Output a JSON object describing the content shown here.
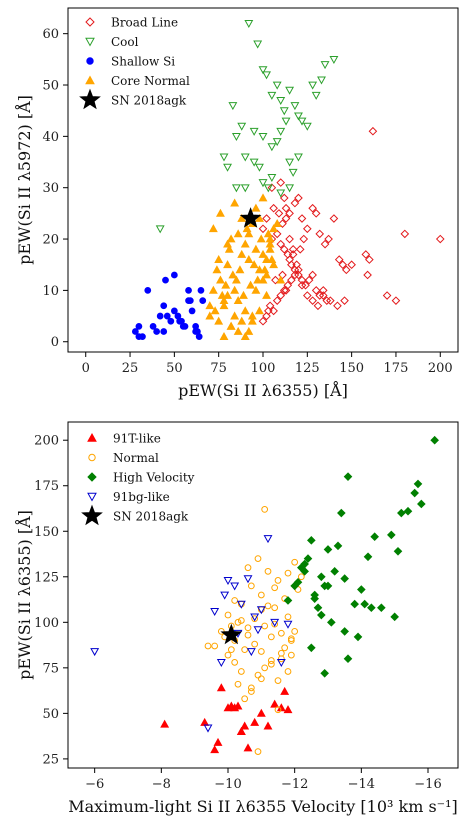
{
  "chart_data": [
    {
      "type": "scatter",
      "xlabel": "pEW(Si II λ6355) [Å]",
      "ylabel": "pEW(Si II λ5972) [Å]",
      "xlim": [
        -10,
        210
      ],
      "ylim": [
        -2,
        65
      ],
      "xticks": [
        "0",
        "25",
        "50",
        "75",
        "100",
        "125",
        "150",
        "175",
        "200"
      ],
      "yticks": [
        "0",
        "10",
        "20",
        "30",
        "40",
        "50",
        "60"
      ],
      "legend_position": "upper-left",
      "series": [
        {
          "name": "Broad Line",
          "marker": "diamond-open",
          "color": "#e31a1c",
          "x": [
            105,
            110,
            112,
            113,
            115,
            118,
            120,
            122,
            125,
            128,
            130,
            132,
            135,
            137,
            140,
            143,
            145,
            147,
            150,
            158,
            159,
            160,
            105,
            108,
            110,
            112,
            114,
            116,
            118,
            120,
            122,
            124,
            126,
            128,
            130,
            132,
            134,
            136,
            102,
            104,
            106,
            108,
            110,
            112,
            114,
            116,
            118,
            120,
            122,
            125,
            128,
            131,
            134,
            138,
            142,
            146,
            100,
            103,
            107,
            111,
            113,
            115,
            117,
            119,
            121,
            123,
            100,
            102,
            106,
            109,
            111,
            113,
            115,
            117,
            162,
            180,
            200,
            170,
            175
          ],
          "y": [
            30,
            31,
            28,
            26,
            25,
            27,
            28,
            24,
            22,
            26,
            25,
            21,
            19,
            20,
            24,
            16,
            15,
            14,
            15,
            17,
            13,
            16,
            20,
            21,
            19,
            18,
            17,
            15,
            14,
            13,
            12,
            11,
            12,
            13,
            10,
            9,
            9,
            8,
            5,
            7,
            6,
            8,
            9,
            10,
            11,
            12,
            13,
            14,
            11,
            9,
            8,
            7,
            10,
            8,
            7,
            8,
            4,
            6,
            12,
            13,
            10,
            16,
            17,
            15,
            18,
            20,
            22,
            24,
            26,
            25,
            23,
            24,
            20,
            18,
            41,
            21,
            20,
            9,
            8
          ]
        },
        {
          "name": "Cool",
          "marker": "triangle-down-open",
          "color": "#2ca02c",
          "x": [
            92,
            97,
            100,
            102,
            105,
            108,
            110,
            112,
            115,
            118,
            120,
            122,
            125,
            128,
            130,
            133,
            135,
            140,
            83,
            85,
            88,
            90,
            95,
            98,
            100,
            103,
            105,
            108,
            110,
            113,
            115,
            117,
            120,
            78,
            80,
            85,
            90,
            95,
            100,
            105,
            110,
            115,
            42
          ],
          "y": [
            62,
            58,
            53,
            52,
            48,
            50,
            47,
            45,
            49,
            46,
            44,
            43,
            42,
            50,
            48,
            51,
            54,
            55,
            46,
            40,
            42,
            30,
            35,
            34,
            31,
            30,
            38,
            39,
            41,
            43,
            35,
            33,
            36,
            36,
            34,
            30,
            36,
            41,
            40,
            32,
            29,
            30,
            22
          ]
        },
        {
          "name": "Shallow Si",
          "marker": "circle",
          "color": "#0000ff",
          "x": [
            28,
            30,
            32,
            35,
            38,
            40,
            42,
            44,
            45,
            46,
            48,
            50,
            52,
            53,
            54,
            55,
            56,
            58,
            59,
            60,
            62,
            63,
            64,
            65,
            66,
            30,
            44,
            50,
            58,
            62
          ],
          "y": [
            2,
            3,
            1,
            10,
            3,
            2,
            5,
            7,
            12,
            5,
            4,
            6,
            5,
            4,
            4,
            3,
            3,
            10,
            8,
            6,
            3,
            2,
            1,
            10,
            8,
            1,
            2,
            13,
            8,
            2
          ]
        },
        {
          "name": "Core Normal",
          "marker": "triangle-up",
          "color": "#ffa500",
          "x": [
            70,
            72,
            74,
            75,
            76,
            77,
            78,
            79,
            80,
            81,
            82,
            83,
            84,
            85,
            86,
            87,
            88,
            89,
            90,
            91,
            92,
            93,
            94,
            95,
            96,
            97,
            98,
            99,
            100,
            101,
            102,
            103,
            104,
            105,
            106,
            70,
            73,
            75,
            78,
            80,
            82,
            84,
            86,
            88,
            90,
            92,
            94,
            96,
            98,
            100,
            102,
            104,
            106,
            72,
            76,
            80,
            84,
            88,
            92,
            96,
            100,
            104,
            108,
            110,
            78,
            82,
            86,
            90,
            94,
            98,
            102
          ],
          "y": [
            7,
            10,
            14,
            16,
            12,
            9,
            8,
            11,
            15,
            18,
            20,
            13,
            10,
            12,
            21,
            14,
            17,
            9,
            19,
            22,
            16,
            11,
            23,
            15,
            18,
            12,
            24,
            20,
            17,
            14,
            13,
            21,
            19,
            16,
            22,
            5,
            6,
            4,
            7,
            9,
            3,
            5,
            8,
            4,
            6,
            2,
            5,
            10,
            14,
            12,
            16,
            18,
            15,
            22,
            25,
            19,
            27,
            24,
            21,
            26,
            28,
            20,
            23,
            12,
            1,
            3,
            2,
            1,
            4,
            6,
            9
          ]
        },
        {
          "name": "SN 2018agk",
          "marker": "star",
          "color": "#000000",
          "x": [
            93
          ],
          "y": [
            24
          ]
        }
      ]
    },
    {
      "type": "scatter",
      "xlabel": "Maximum-light Si II λ6355 Velocity  [10³ km s⁻¹]",
      "ylabel": "pEW(Si II λ6355) [Å]",
      "xlim": [
        -5.2,
        -16.9
      ],
      "ylim": [
        20,
        210
      ],
      "xticks": [
        "−6",
        "−8",
        "−10",
        "−12",
        "−14",
        "−16"
      ],
      "yticks": [
        "25",
        "50",
        "75",
        "100",
        "125",
        "150",
        "175",
        "200"
      ],
      "legend_position": "upper-left",
      "series": [
        {
          "name": "91T-like",
          "marker": "triangle-up",
          "color": "#ff0000",
          "x": [
            -8.1,
            -9.3,
            -9.6,
            -9.7,
            -9.8,
            -10.0,
            -10.2,
            -10.3,
            -10.4,
            -10.5,
            -10.6,
            -10.8,
            -11.0,
            -11.2,
            -11.4,
            -11.6,
            -11.7,
            -11.8,
            -10.4,
            -10.1
          ],
          "y": [
            44,
            45,
            30,
            34,
            64,
            53,
            53,
            54,
            40,
            43,
            31,
            45,
            50,
            43,
            55,
            53,
            62,
            52,
            40,
            54
          ]
        },
        {
          "name": "Normal",
          "marker": "circle-open",
          "color": "#ffa500",
          "x": [
            -9.6,
            -9.8,
            -10.0,
            -10.1,
            -10.2,
            -10.3,
            -10.4,
            -10.5,
            -10.6,
            -10.7,
            -10.8,
            -10.9,
            -11.0,
            -11.1,
            -11.2,
            -11.3,
            -11.4,
            -11.5,
            -11.6,
            -11.7,
            -11.8,
            -11.9,
            -12.0,
            -12.1,
            -12.2,
            -9.9,
            -10.0,
            -10.2,
            -10.4,
            -10.6,
            -10.8,
            -11.0,
            -11.2,
            -11.4,
            -11.6,
            -11.8,
            -12.0,
            -10.3,
            -10.5,
            -10.7,
            -10.9,
            -11.1,
            -11.3,
            -11.5,
            -11.7,
            -11.9,
            -10.1,
            -10.4,
            -10.7,
            -11.0,
            -11.3,
            -11.6,
            -11.9,
            -10.2,
            -10.6,
            -11.0,
            -11.4,
            -11.8,
            -9.4,
            -10.9,
            -11.1,
            -11.5
          ],
          "y": [
            87,
            95,
            104,
            98,
            90,
            100,
            110,
            85,
            93,
            120,
            102,
            135,
            115,
            98,
            128,
            92,
            108,
            123,
            94,
            113,
            103,
            82,
            133,
            118,
            125,
            92,
            82,
            78,
            101,
            97,
            88,
            84,
            109,
            99,
            80,
            73,
            95,
            66,
            58,
            64,
            71,
            75,
            79,
            68,
            86,
            90,
            85,
            73,
            62,
            69,
            77,
            83,
            91,
            112,
            130,
            107,
            119,
            127,
            87,
            29,
            162,
            52
          ]
        },
        {
          "name": "High Velocity",
          "marker": "diamond",
          "color": "#008000",
          "x": [
            -11.8,
            -12.0,
            -12.2,
            -12.4,
            -12.6,
            -12.8,
            -13.0,
            -13.2,
            -13.4,
            -13.6,
            -13.8,
            -14.0,
            -14.2,
            -14.4,
            -14.6,
            -15.0,
            -15.2,
            -15.4,
            -15.6,
            -16.2,
            -12.3,
            -12.5,
            -12.7,
            -12.9,
            -13.1,
            -13.5,
            -13.9,
            -14.3,
            -14.9,
            -15.1,
            -15.7,
            -12.1,
            -12.3,
            -12.6,
            -12.8,
            -13.0,
            -13.3,
            -13.5,
            -14.1,
            -12.5,
            -12.9,
            -13.6,
            -15.8
          ],
          "y": [
            112,
            120,
            130,
            135,
            115,
            125,
            140,
            128,
            160,
            180,
            110,
            118,
            136,
            147,
            108,
            103,
            160,
            161,
            171,
            200,
            132,
            145,
            108,
            120,
            100,
            95,
            92,
            108,
            148,
            139,
            176,
            122,
            128,
            113,
            104,
            120,
            142,
            124,
            110,
            86,
            72,
            80,
            165
          ]
        },
        {
          "name": "91bg-like",
          "marker": "triangle-down-open",
          "color": "#0000cd",
          "x": [
            -6.0,
            -9.4,
            -9.6,
            -9.8,
            -10.0,
            -10.2,
            -10.4,
            -10.6,
            -10.8,
            -11.0,
            -11.2,
            -11.4,
            -11.6,
            -11.8,
            -10.3,
            -10.7,
            -10.9,
            -9.9
          ],
          "y": [
            84,
            42,
            106,
            78,
            123,
            120,
            110,
            124,
            103,
            107,
            146,
            100,
            78,
            99,
            94,
            84,
            96,
            115
          ]
        },
        {
          "name": "SN 2018agk",
          "marker": "star",
          "color": "#000000",
          "x": [
            -10.1
          ],
          "y": [
            93
          ]
        }
      ]
    }
  ]
}
